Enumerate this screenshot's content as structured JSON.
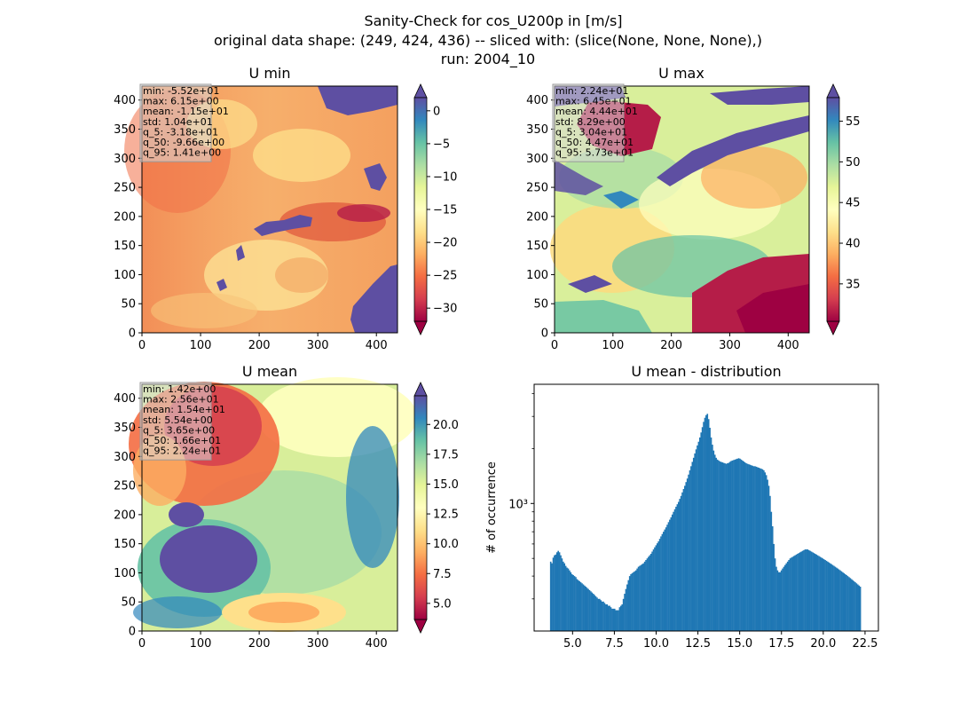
{
  "figure": {
    "title_lines": [
      "Sanity-Check for cos_U200p in [m/s]",
      "original data shape: (249, 424, 436) -- sliced with: (slice(None, None, None),)",
      "run: 2004_10"
    ]
  },
  "colormap": {
    "name": "Spectral",
    "stops": [
      "#9e0142",
      "#d53e4f",
      "#f46d43",
      "#fdae61",
      "#fee08b",
      "#ffffbf",
      "#e6f598",
      "#abdda4",
      "#66c2a5",
      "#3288bd",
      "#5e4fa2"
    ]
  },
  "bar_color": "#1f77b4",
  "chart_data": [
    {
      "type": "heatmap",
      "title": "U min",
      "x_ticks": [
        "0",
        "100",
        "200",
        "300",
        "400"
      ],
      "y_ticks": [
        "0",
        "50",
        "100",
        "150",
        "200",
        "250",
        "300",
        "350",
        "400"
      ],
      "xlim": [
        0,
        436
      ],
      "ylim": [
        0,
        424
      ],
      "colorbar": {
        "range": [
          -32,
          2
        ],
        "ticks": [
          "0",
          "−5",
          "−10",
          "−15",
          "−20",
          "−25",
          "−30"
        ],
        "tick_values": [
          0,
          -5,
          -10,
          -15,
          -20,
          -25,
          -30
        ],
        "extend": "both"
      },
      "stats": [
        "min: -5.52e+01",
        "max: 6.15e+00",
        "mean: -1.15e+01",
        "std: 1.04e+01",
        "q_5: -3.18e+01",
        "q_50: -9.66e+00",
        "q_95: 1.41e+00"
      ]
    },
    {
      "type": "heatmap",
      "title": "U max",
      "x_ticks": [
        "0",
        "100",
        "200",
        "300",
        "400"
      ],
      "y_ticks": [
        "0",
        "50",
        "100",
        "150",
        "200",
        "250",
        "300",
        "350",
        "400"
      ],
      "xlim": [
        0,
        436
      ],
      "ylim": [
        0,
        424
      ],
      "colorbar": {
        "range": [
          30.4,
          57.9
        ],
        "ticks": [
          "55",
          "50",
          "45",
          "40",
          "35"
        ],
        "tick_values": [
          55,
          50,
          45,
          40,
          35
        ],
        "extend": "both"
      },
      "stats": [
        "min: 2.24e+01",
        "max: 6.45e+01",
        "mean: 4.44e+01",
        "std: 8.29e+00",
        "q_5: 3.04e+01",
        "q_50: 4.47e+01",
        "q_95: 5.73e+01"
      ]
    },
    {
      "type": "heatmap",
      "title": "U mean",
      "x_ticks": [
        "0",
        "100",
        "200",
        "300",
        "400"
      ],
      "y_ticks": [
        "0",
        "50",
        "100",
        "150",
        "200",
        "250",
        "300",
        "350",
        "400"
      ],
      "xlim": [
        0,
        436
      ],
      "ylim": [
        0,
        424
      ],
      "colorbar": {
        "range": [
          3.65,
          22.4
        ],
        "ticks": [
          "20.0",
          "17.5",
          "15.0",
          "12.5",
          "10.0",
          "7.5",
          "5.0"
        ],
        "tick_values": [
          20.0,
          17.5,
          15.0,
          12.5,
          10.0,
          7.5,
          5.0
        ],
        "extend": "both"
      },
      "stats": [
        "min: 1.42e+00",
        "max: 2.56e+01",
        "mean: 1.54e+01",
        "std: 5.54e+00",
        "q_5: 3.65e+00",
        "q_50: 1.66e+01",
        "q_95: 2.24e+01"
      ]
    },
    {
      "type": "bar",
      "title": "U mean - distribution",
      "ylabel": "# of occurrence",
      "yscale": "log",
      "y_tick_label": "10³",
      "x_ticks": [
        "5.0",
        "7.5",
        "10.0",
        "12.5",
        "15.0",
        "17.5",
        "20.0",
        "22.5"
      ],
      "xlim": [
        2.7,
        23.3
      ],
      "ylim": [
        200,
        4500
      ],
      "bin_start": 3.65,
      "bin_width": 0.075,
      "values": [
        480,
        470,
        505,
        520,
        525,
        540,
        550,
        540,
        520,
        500,
        480,
        470,
        455,
        445,
        440,
        430,
        420,
        410,
        405,
        400,
        395,
        385,
        380,
        375,
        370,
        365,
        360,
        355,
        350,
        345,
        340,
        335,
        330,
        325,
        320,
        315,
        310,
        305,
        300,
        300,
        295,
        290,
        290,
        285,
        280,
        280,
        275,
        275,
        270,
        265,
        265,
        265,
        260,
        260,
        260,
        270,
        275,
        280,
        300,
        320,
        340,
        360,
        380,
        400,
        410,
        415,
        420,
        425,
        430,
        440,
        450,
        455,
        460,
        465,
        470,
        480,
        490,
        500,
        510,
        520,
        530,
        545,
        560,
        575,
        590,
        605,
        620,
        640,
        660,
        680,
        700,
        720,
        740,
        765,
        790,
        815,
        840,
        870,
        900,
        930,
        960,
        990,
        1020,
        1060,
        1100,
        1150,
        1200,
        1250,
        1310,
        1370,
        1440,
        1520,
        1600,
        1690,
        1780,
        1880,
        1980,
        2080,
        2180,
        2300,
        2450,
        2620,
        2800,
        2950,
        3050,
        3100,
        2900,
        2600,
        2300,
        2100,
        1950,
        1850,
        1780,
        1740,
        1720,
        1700,
        1690,
        1680,
        1670,
        1660,
        1650,
        1660,
        1670,
        1690,
        1710,
        1720,
        1730,
        1740,
        1750,
        1760,
        1770,
        1760,
        1740,
        1720,
        1700,
        1680,
        1660,
        1650,
        1640,
        1630,
        1620,
        1610,
        1600,
        1600,
        1590,
        1580,
        1570,
        1560,
        1550,
        1540,
        1520,
        1480,
        1430,
        1350,
        1250,
        1100,
        900,
        750,
        600,
        500,
        450,
        430,
        420,
        420,
        430,
        440,
        450,
        460,
        470,
        480,
        490,
        500,
        505,
        510,
        515,
        520,
        525,
        530,
        535,
        540,
        545,
        550,
        555,
        560,
        560,
        560,
        555,
        550,
        545,
        540,
        535,
        530,
        525,
        520,
        515,
        510,
        505,
        500,
        495,
        490,
        485,
        480,
        475,
        470,
        465,
        460,
        455,
        450,
        445,
        440,
        435,
        430,
        425,
        420,
        415,
        410,
        405,
        400,
        395,
        390,
        385,
        380,
        375,
        370,
        365,
        360,
        355,
        350
      ]
    }
  ]
}
